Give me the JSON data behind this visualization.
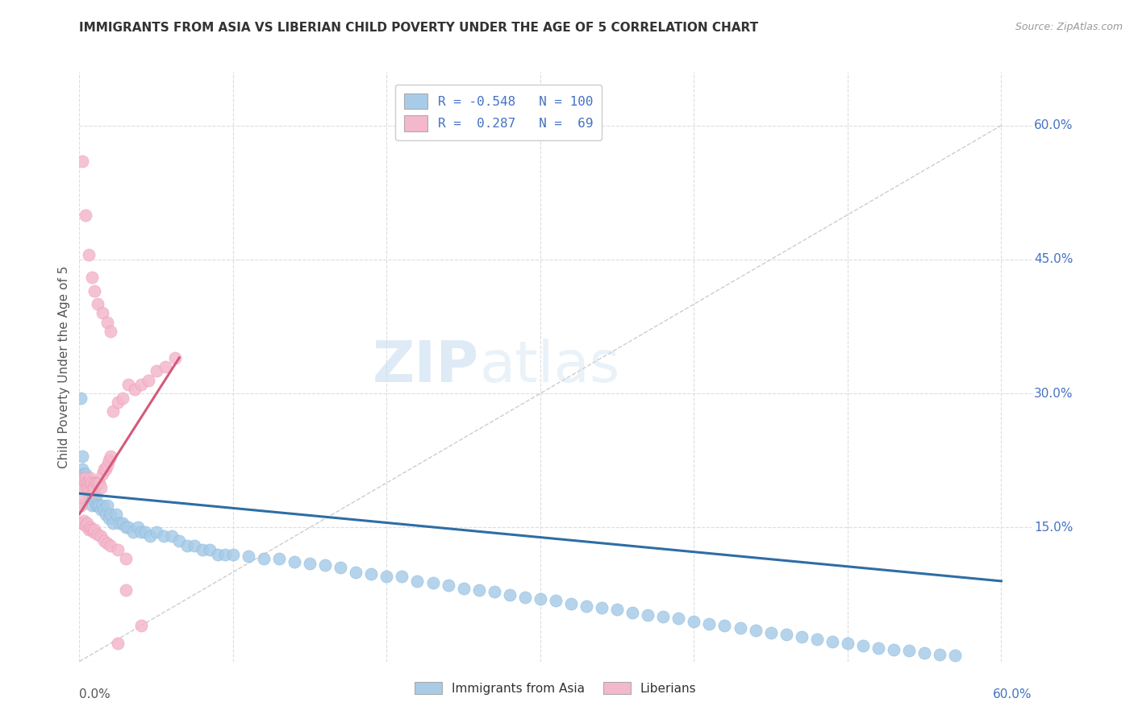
{
  "title": "IMMIGRANTS FROM ASIA VS LIBERIAN CHILD POVERTY UNDER THE AGE OF 5 CORRELATION CHART",
  "source": "Source: ZipAtlas.com",
  "ylabel": "Child Poverty Under the Age of 5",
  "xlim": [
    0.0,
    0.62
  ],
  "ylim": [
    0.0,
    0.66
  ],
  "watermark_zip": "ZIP",
  "watermark_atlas": "atlas",
  "blue_color": "#a8cce8",
  "blue_edge_color": "#7bafd4",
  "pink_color": "#f4b8cc",
  "pink_edge_color": "#e890a8",
  "blue_line_color": "#2e6da4",
  "pink_line_color": "#d45a7a",
  "background_color": "#ffffff",
  "grid_color": "#dddddd",
  "title_color": "#333333",
  "source_color": "#999999",
  "axis_label_color": "#555555",
  "right_tick_color": "#4472c4",
  "legend_text_color": "#4472c4",
  "blue_scatter_x": [
    0.001,
    0.002,
    0.002,
    0.003,
    0.003,
    0.004,
    0.004,
    0.005,
    0.005,
    0.006,
    0.006,
    0.007,
    0.007,
    0.008,
    0.008,
    0.009,
    0.009,
    0.01,
    0.01,
    0.011,
    0.011,
    0.012,
    0.013,
    0.014,
    0.015,
    0.016,
    0.017,
    0.018,
    0.019,
    0.02,
    0.022,
    0.024,
    0.026,
    0.028,
    0.03,
    0.032,
    0.035,
    0.038,
    0.04,
    0.043,
    0.046,
    0.05,
    0.055,
    0.06,
    0.065,
    0.07,
    0.075,
    0.08,
    0.085,
    0.09,
    0.095,
    0.1,
    0.11,
    0.12,
    0.13,
    0.14,
    0.15,
    0.16,
    0.17,
    0.18,
    0.19,
    0.2,
    0.21,
    0.22,
    0.23,
    0.24,
    0.25,
    0.26,
    0.27,
    0.28,
    0.29,
    0.3,
    0.31,
    0.32,
    0.33,
    0.34,
    0.35,
    0.36,
    0.37,
    0.38,
    0.39,
    0.4,
    0.41,
    0.42,
    0.43,
    0.44,
    0.45,
    0.46,
    0.47,
    0.48,
    0.49,
    0.5,
    0.51,
    0.52,
    0.53,
    0.54,
    0.55,
    0.56,
    0.57,
    0.001
  ],
  "blue_scatter_y": [
    0.295,
    0.23,
    0.215,
    0.2,
    0.21,
    0.195,
    0.21,
    0.195,
    0.2,
    0.185,
    0.19,
    0.185,
    0.2,
    0.175,
    0.2,
    0.185,
    0.19,
    0.18,
    0.195,
    0.175,
    0.185,
    0.175,
    0.175,
    0.17,
    0.175,
    0.17,
    0.165,
    0.175,
    0.16,
    0.165,
    0.155,
    0.165,
    0.155,
    0.155,
    0.15,
    0.15,
    0.145,
    0.15,
    0.145,
    0.145,
    0.14,
    0.145,
    0.14,
    0.14,
    0.135,
    0.13,
    0.13,
    0.125,
    0.125,
    0.12,
    0.12,
    0.12,
    0.118,
    0.115,
    0.115,
    0.112,
    0.11,
    0.108,
    0.105,
    0.1,
    0.098,
    0.095,
    0.095,
    0.09,
    0.088,
    0.085,
    0.082,
    0.08,
    0.078,
    0.075,
    0.072,
    0.07,
    0.068,
    0.065,
    0.062,
    0.06,
    0.058,
    0.055,
    0.052,
    0.05,
    0.048,
    0.045,
    0.042,
    0.04,
    0.038,
    0.035,
    0.032,
    0.03,
    0.028,
    0.025,
    0.022,
    0.02,
    0.018,
    0.015,
    0.013,
    0.012,
    0.01,
    0.008,
    0.007,
    0.175
  ],
  "pink_scatter_x": [
    0.001,
    0.001,
    0.002,
    0.002,
    0.003,
    0.003,
    0.004,
    0.004,
    0.005,
    0.005,
    0.006,
    0.006,
    0.007,
    0.007,
    0.008,
    0.008,
    0.009,
    0.009,
    0.01,
    0.01,
    0.011,
    0.012,
    0.013,
    0.014,
    0.015,
    0.016,
    0.017,
    0.018,
    0.019,
    0.02,
    0.022,
    0.025,
    0.028,
    0.032,
    0.036,
    0.04,
    0.045,
    0.05,
    0.056,
    0.062,
    0.001,
    0.002,
    0.003,
    0.004,
    0.005,
    0.006,
    0.007,
    0.008,
    0.009,
    0.01,
    0.012,
    0.014,
    0.016,
    0.018,
    0.02,
    0.025,
    0.03,
    0.002,
    0.004,
    0.006,
    0.008,
    0.01,
    0.012,
    0.015,
    0.018,
    0.02,
    0.025,
    0.03,
    0.04
  ],
  "pink_scatter_y": [
    0.175,
    0.185,
    0.2,
    0.195,
    0.195,
    0.205,
    0.205,
    0.2,
    0.2,
    0.195,
    0.2,
    0.195,
    0.2,
    0.205,
    0.195,
    0.2,
    0.19,
    0.195,
    0.2,
    0.195,
    0.2,
    0.2,
    0.2,
    0.195,
    0.21,
    0.215,
    0.215,
    0.22,
    0.225,
    0.23,
    0.28,
    0.29,
    0.295,
    0.31,
    0.305,
    0.31,
    0.315,
    0.325,
    0.33,
    0.34,
    0.155,
    0.155,
    0.158,
    0.152,
    0.155,
    0.148,
    0.15,
    0.148,
    0.145,
    0.148,
    0.142,
    0.14,
    0.135,
    0.132,
    0.13,
    0.125,
    0.115,
    0.56,
    0.5,
    0.455,
    0.43,
    0.415,
    0.4,
    0.39,
    0.38,
    0.37,
    0.02,
    0.08,
    0.04
  ],
  "blue_line_x": [
    0.0,
    0.6
  ],
  "blue_line_y": [
    0.188,
    0.09
  ],
  "pink_line_x": [
    0.0,
    0.065
  ],
  "pink_line_y": [
    0.165,
    0.34
  ],
  "diagonal_line_x": [
    0.0,
    0.6
  ],
  "diagonal_line_y": [
    0.0,
    0.6
  ],
  "yticks": [
    0.0,
    0.15,
    0.3,
    0.45,
    0.6
  ],
  "ytick_labels": [
    "",
    "15.0%",
    "30.0%",
    "45.0%",
    "60.0%"
  ],
  "xtick_grid": [
    0.0,
    0.1,
    0.2,
    0.3,
    0.4,
    0.5,
    0.6
  ]
}
